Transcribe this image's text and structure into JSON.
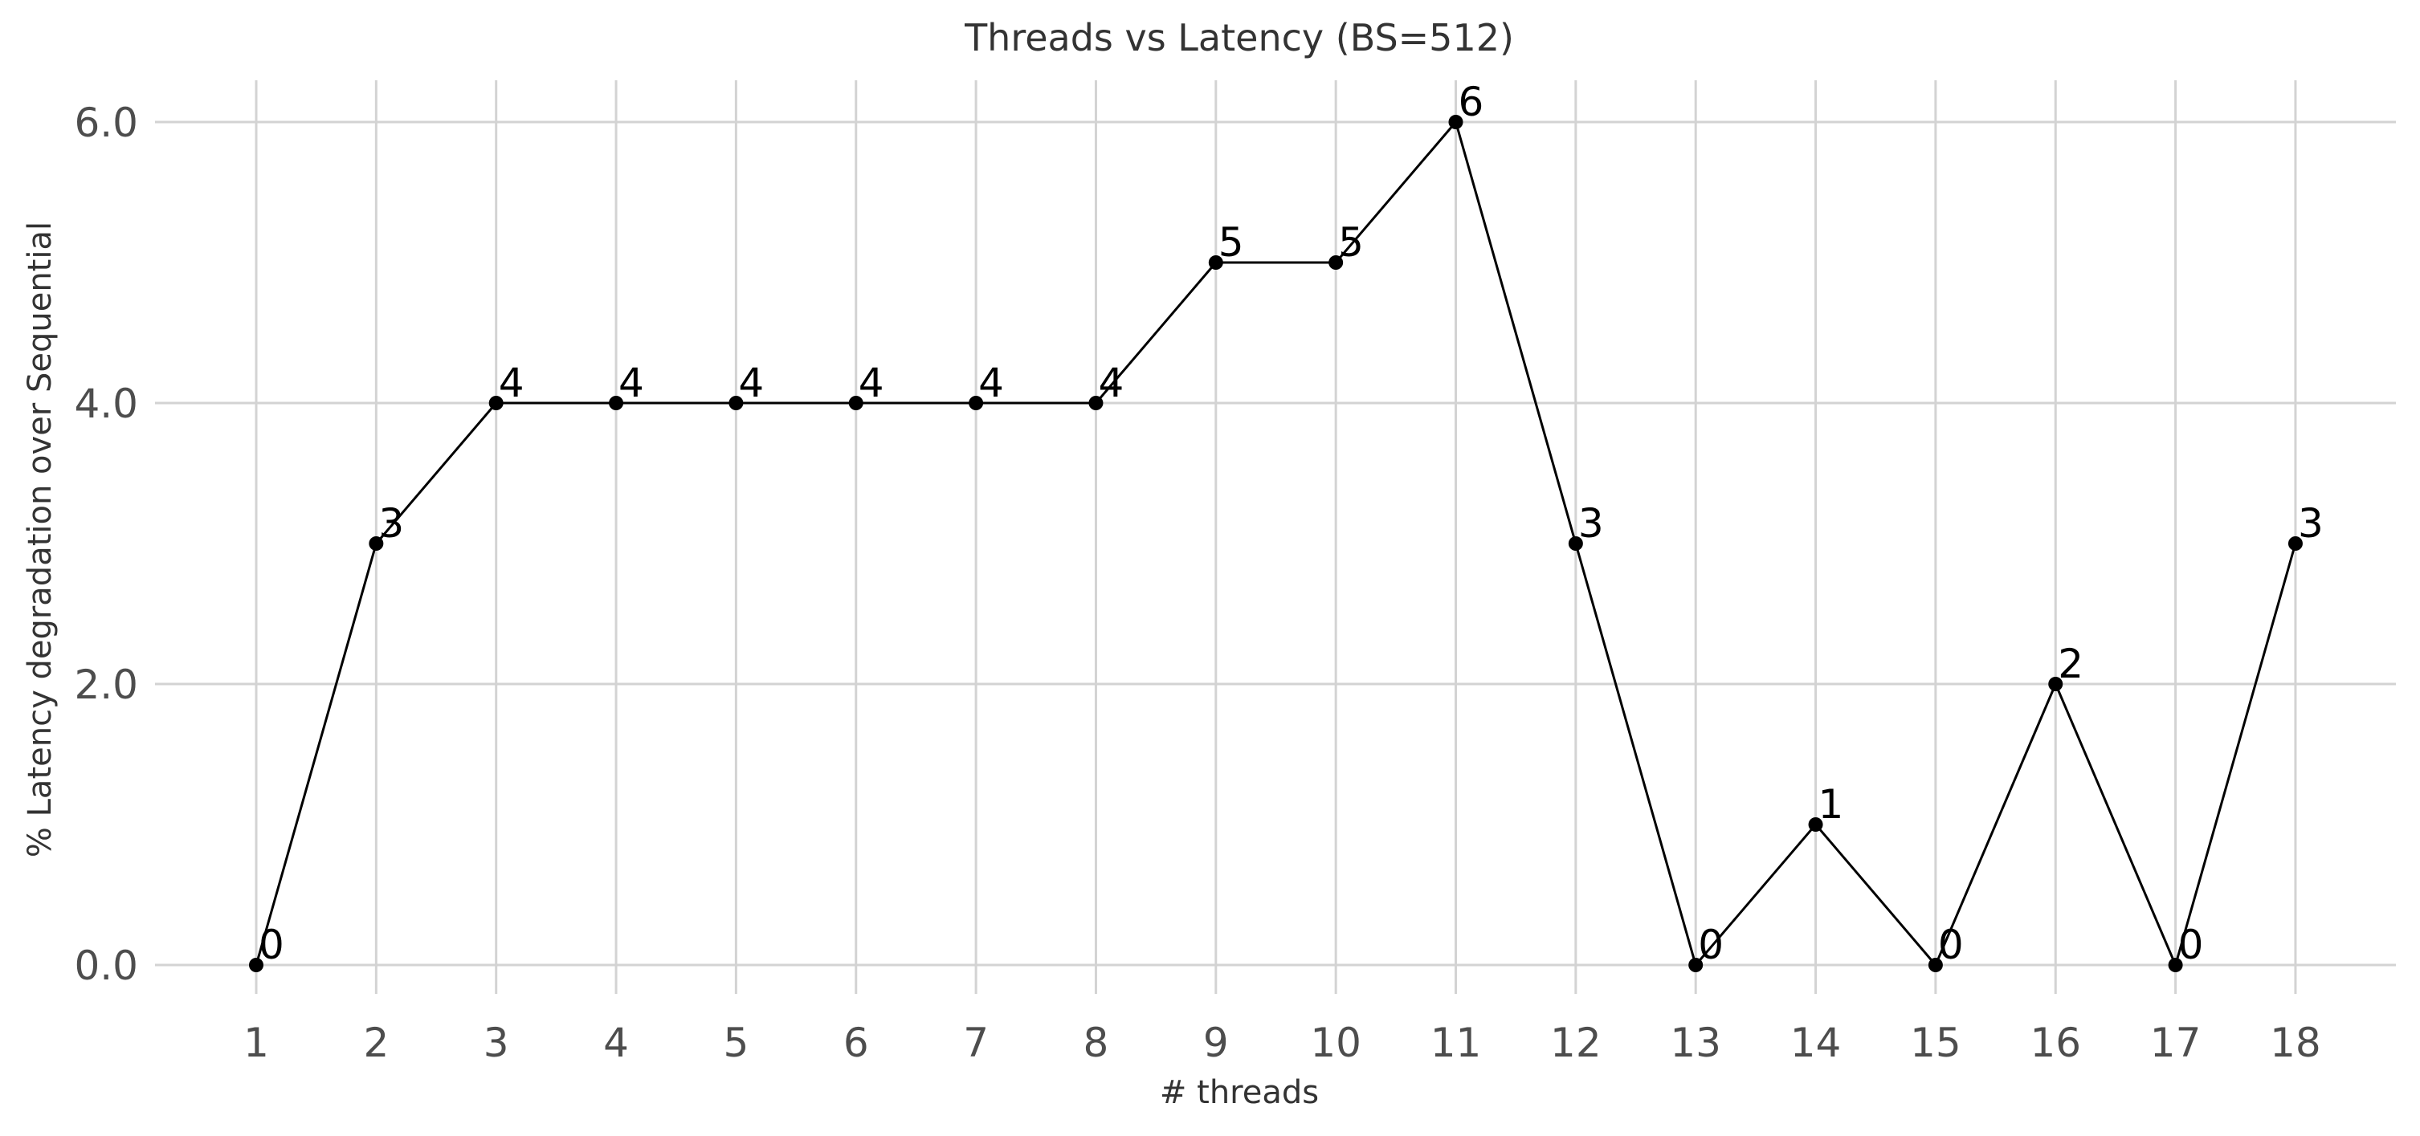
{
  "chart_data": {
    "type": "line",
    "title": "Threads vs Latency (BS=512)",
    "xlabel": "# threads",
    "ylabel": "% Latency degradation over Sequential",
    "x": [
      1,
      2,
      3,
      4,
      5,
      6,
      7,
      8,
      9,
      10,
      11,
      12,
      13,
      14,
      15,
      16,
      17,
      18
    ],
    "categories": [
      "1",
      "2",
      "3",
      "4",
      "5",
      "6",
      "7",
      "8",
      "9",
      "10",
      "11",
      "12",
      "13",
      "14",
      "15",
      "16",
      "17",
      "18"
    ],
    "series": [
      {
        "values": [
          0,
          3,
          4,
          4,
          4,
          4,
          4,
          4,
          5,
          5,
          6,
          3,
          0,
          1,
          0,
          2,
          0,
          3
        ],
        "labels": [
          "0",
          "3",
          "4",
          "4",
          "4",
          "4",
          "4",
          "4",
          "5",
          "5",
          "6",
          "3",
          "0",
          "1",
          "0",
          "2",
          "0",
          "3"
        ],
        "color": "#000000"
      }
    ],
    "ylim": [
      -0.3,
      6.3
    ],
    "yticks": [
      0,
      2,
      4,
      6
    ],
    "ytick_labels": [
      "0.0",
      "2.0",
      "4.0",
      "6.0"
    ],
    "grid": true,
    "legend": "none",
    "grid_color": "#d3d3d3"
  }
}
